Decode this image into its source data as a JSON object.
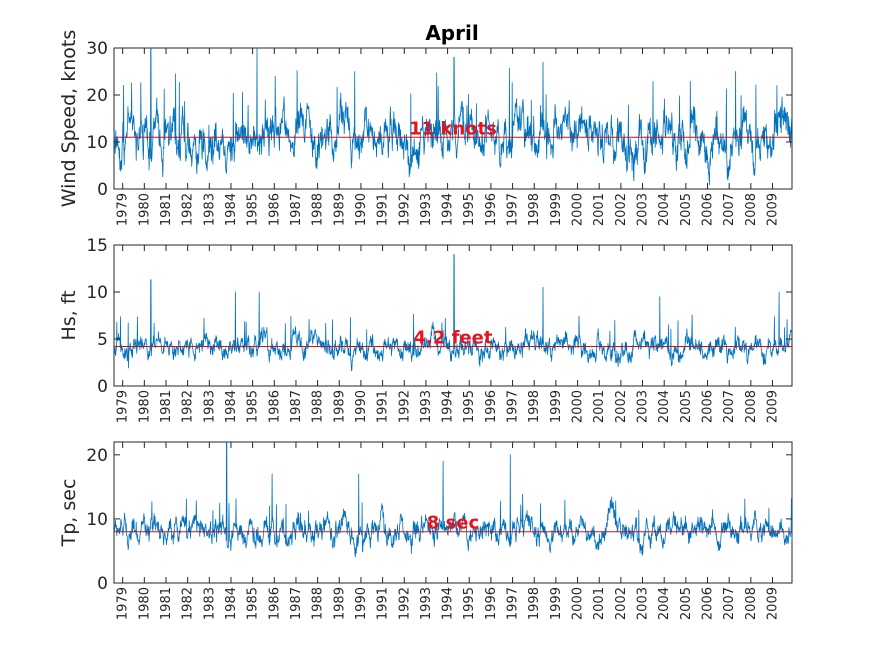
{
  "figure": {
    "title": "April"
  },
  "chart_data": [
    {
      "type": "line",
      "ylabel": "Wind Speed, knots",
      "ylim": [
        0,
        30
      ],
      "yticks": [
        0,
        10,
        20,
        30
      ],
      "xlim": [
        1978.6,
        2009.9
      ],
      "xticks": [
        "1979",
        "1980",
        "1981",
        "1982",
        "1983",
        "1984",
        "1985",
        "1986",
        "1987",
        "1988",
        "1989",
        "1990",
        "1991",
        "1992",
        "1993",
        "1994",
        "1995",
        "1996",
        "1997",
        "1998",
        "1999",
        "2000",
        "2001",
        "2002",
        "2003",
        "2004",
        "2005",
        "2006",
        "2007",
        "2008",
        "2009"
      ],
      "series": [
        {
          "color": "#0072bd",
          "base": 11,
          "spread": 5.5,
          "min": 0,
          "max": 30,
          "peaks": [
            [
              1980.3,
              30
            ],
            [
              1985.2,
              30
            ],
            [
              1994.3,
              28
            ],
            [
              1998.4,
              27
            ],
            [
              2007.3,
              25
            ],
            [
              2009.2,
              22
            ]
          ]
        }
      ],
      "mean_line": {
        "value": 11,
        "label": "11 knots",
        "color": "#d01015"
      }
    },
    {
      "type": "line",
      "ylabel": "Hs, ft",
      "ylim": [
        0,
        15
      ],
      "yticks": [
        0,
        5,
        10,
        15
      ],
      "xlim": [
        1978.6,
        2009.9
      ],
      "xticks": [
        "1979",
        "1980",
        "1981",
        "1982",
        "1983",
        "1984",
        "1985",
        "1986",
        "1987",
        "1988",
        "1989",
        "1990",
        "1991",
        "1992",
        "1993",
        "1994",
        "1995",
        "1996",
        "1997",
        "1998",
        "1999",
        "2000",
        "2001",
        "2002",
        "2003",
        "2004",
        "2005",
        "2006",
        "2007",
        "2008",
        "2009"
      ],
      "series": [
        {
          "color": "#0072bd",
          "base": 4.2,
          "spread": 1.3,
          "min": 1,
          "max": 15,
          "peaks": [
            [
              1980.3,
              11.3
            ],
            [
              1984.2,
              10
            ],
            [
              1985.3,
              10
            ],
            [
              1994.3,
              14
            ],
            [
              1998.4,
              10.5
            ],
            [
              2003.8,
              9.5
            ],
            [
              2009.3,
              10
            ]
          ]
        }
      ],
      "mean_line": {
        "value": 4.2,
        "label": "4.2 feet",
        "color": "#d01015"
      }
    },
    {
      "type": "line",
      "ylabel": "Tp, sec",
      "ylim": [
        0,
        22
      ],
      "yticks": [
        0,
        10,
        20
      ],
      "xlim": [
        1978.6,
        2009.9
      ],
      "xticks": [
        "1979",
        "1980",
        "1981",
        "1982",
        "1983",
        "1984",
        "1985",
        "1986",
        "1987",
        "1988",
        "1989",
        "1990",
        "1991",
        "1992",
        "1993",
        "1994",
        "1995",
        "1996",
        "1997",
        "1998",
        "1999",
        "2000",
        "2001",
        "2002",
        "2003",
        "2004",
        "2005",
        "2006",
        "2007",
        "2008",
        "2009"
      ],
      "series": [
        {
          "color": "#0072bd",
          "base": 8.2,
          "spread": 2.2,
          "min": 3,
          "max": 22,
          "peaks": [
            [
              1983.8,
              22
            ],
            [
              1993.8,
              19
            ],
            [
              1996.9,
              20
            ],
            [
              1989.9,
              17
            ],
            [
              1985.9,
              17
            ]
          ]
        }
      ],
      "mean_line": {
        "value": 8,
        "label": "8 sec",
        "color": "#d01015"
      }
    }
  ]
}
